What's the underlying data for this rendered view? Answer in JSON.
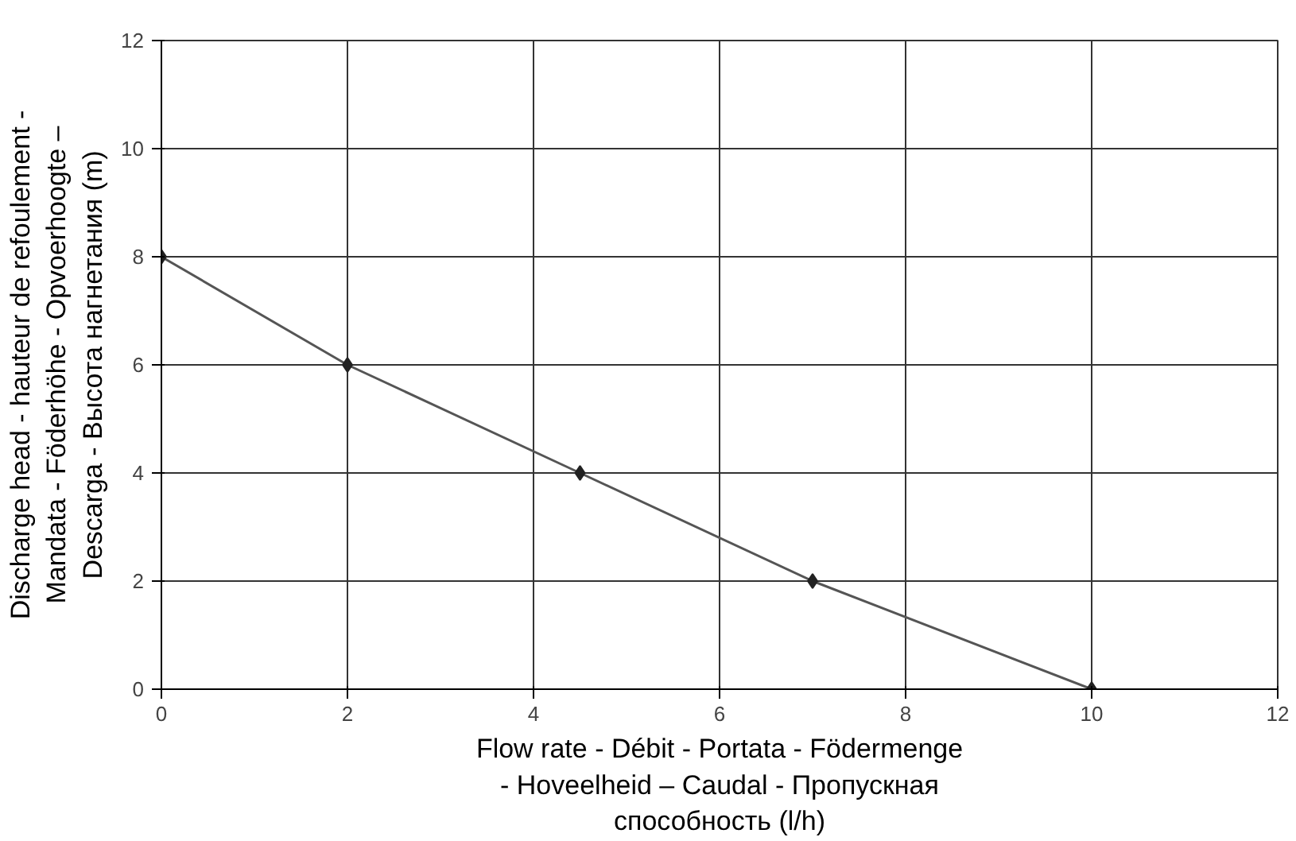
{
  "chart_data": {
    "type": "line",
    "xlabel": "Flow rate - Débit - Portata - Födermenge - Hoveelheid – Caudal - Пропускная способность (l/h)",
    "ylabel": "Discharge head - hauteur de refoulement - Mandata - Föderhöhe - Opvoerhoogte – Descarga - Высота нагнетания (m)",
    "x": [
      0,
      2,
      4.5,
      7,
      10
    ],
    "series": [
      {
        "color": "#555555",
        "values": [
          8,
          6,
          4,
          2,
          0
        ]
      }
    ],
    "xlim": [
      0,
      12
    ],
    "ylim": [
      0,
      12
    ],
    "xticks": [
      0,
      2,
      4,
      6,
      8,
      10,
      12
    ],
    "yticks": [
      0,
      2,
      4,
      6,
      8,
      10,
      12
    ],
    "grid": true,
    "marker": "diamond",
    "line_style": "solid"
  }
}
